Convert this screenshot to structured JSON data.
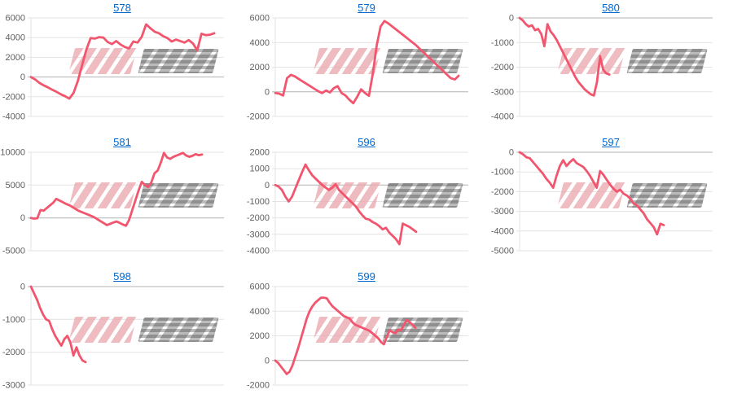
{
  "page": {
    "background": "#ffffff"
  },
  "styles": {
    "link_color": "#0066cc",
    "line_color": "#f2566e",
    "grid_color": "#e3e3e3",
    "zero_line_color": "#b3b3b3",
    "tick_label_color": "#5f5f5f"
  },
  "watermark": {
    "text": "みんレポ",
    "pink_text": "みん",
    "gray_text": "レポ",
    "pink_color": "#eaa9b0",
    "gray_color": "#a9a9a9"
  },
  "chart_data": [
    {
      "type": "line",
      "title": "578",
      "xlabel": "",
      "ylabel": "",
      "legend": "none",
      "grid": "horizontal",
      "ylim": [
        -4000,
        6000
      ],
      "yticks": [
        6000,
        4000,
        2000,
        0,
        -2000,
        -4000
      ],
      "x_span": 0.95,
      "values": [
        0,
        -250,
        -600,
        -850,
        -1050,
        -1300,
        -1500,
        -1750,
        -1950,
        -2200,
        -1600,
        -400,
        1200,
        2800,
        3950,
        3900,
        4050,
        4000,
        3550,
        3350,
        3650,
        3300,
        3050,
        2900,
        3600,
        3500,
        4100,
        5350,
        4950,
        4600,
        4450,
        4150,
        3950,
        3600,
        3800,
        3650,
        3500,
        3750,
        3400,
        2700,
        4400,
        4250,
        4300,
        4450
      ]
    },
    {
      "type": "line",
      "title": "579",
      "xlabel": "",
      "ylabel": "",
      "legend": "none",
      "grid": "horizontal",
      "ylim": [
        -2000,
        6000
      ],
      "yticks": [
        6000,
        4000,
        2000,
        0,
        -2000
      ],
      "x_span": 0.95,
      "values": [
        -100,
        -150,
        -300,
        1100,
        1380,
        1250,
        1050,
        850,
        650,
        450,
        250,
        50,
        -100,
        100,
        -50,
        300,
        460,
        -100,
        -300,
        -650,
        -930,
        -400,
        200,
        -100,
        -330,
        1500,
        3800,
        5300,
        5750,
        5550,
        5300,
        5050,
        4800,
        4550,
        4300,
        4050,
        3800,
        3500,
        3200,
        2900,
        2600,
        2300,
        2000,
        1700,
        1400,
        1100,
        1000,
        1300
      ]
    },
    {
      "type": "line",
      "title": "580",
      "xlabel": "",
      "ylabel": "",
      "legend": "none",
      "grid": "horizontal",
      "ylim": [
        -4000,
        0
      ],
      "yticks": [
        0,
        -1000,
        -2000,
        -3000,
        -4000
      ],
      "x_span": 0.465,
      "values": [
        0,
        -100,
        -250,
        -350,
        -300,
        -500,
        -450,
        -650,
        -1150,
        -250,
        -550,
        -700,
        -900,
        -1150,
        -1400,
        -1650,
        -1900,
        -2150,
        -2400,
        -2600,
        -2750,
        -2900,
        -3000,
        -3100,
        -3150,
        -2600,
        -1550,
        -2100,
        -2250,
        -2300
      ]
    },
    {
      "type": "line",
      "title": "581",
      "xlabel": "",
      "ylabel": "",
      "legend": "none",
      "grid": "horizontal",
      "ylim": [
        -5000,
        10000
      ],
      "yticks": [
        10000,
        5000,
        0,
        -5000
      ],
      "x_span": 0.886,
      "values": [
        0,
        -100,
        -50,
        1200,
        1100,
        1500,
        1900,
        2300,
        2900,
        2650,
        2400,
        2150,
        1950,
        1700,
        1400,
        1100,
        900,
        700,
        500,
        300,
        100,
        -200,
        -500,
        -800,
        -1100,
        -900,
        -700,
        -550,
        -750,
        -1000,
        -1200,
        -300,
        1200,
        2700,
        4200,
        5500,
        5000,
        4700,
        5400,
        6800,
        7200,
        8400,
        9900,
        9200,
        9000,
        9300,
        9500,
        9700,
        9900,
        9500,
        9300,
        9450,
        9700,
        9550,
        9650
      ]
    },
    {
      "type": "line",
      "title": "596",
      "xlabel": "",
      "ylabel": "",
      "legend": "none",
      "grid": "horizontal",
      "ylim": [
        -4000,
        2000
      ],
      "yticks": [
        2000,
        1000,
        0,
        -1000,
        -2000,
        -3000,
        -4000
      ],
      "x_span": 0.73,
      "values": [
        0,
        -100,
        -300,
        -700,
        -1000,
        -700,
        -200,
        300,
        800,
        1250,
        900,
        600,
        400,
        200,
        0,
        -150,
        -300,
        -150,
        50,
        -300,
        -500,
        -700,
        -900,
        -1100,
        -1300,
        -1600,
        -1850,
        -2050,
        -2100,
        -2250,
        -2350,
        -2500,
        -2700,
        -2600,
        -2900,
        -3100,
        -3300,
        -3600,
        -2350,
        -2450,
        -2550,
        -2700,
        -2850
      ]
    },
    {
      "type": "line",
      "title": "597",
      "xlabel": "",
      "ylabel": "",
      "legend": "none",
      "grid": "horizontal",
      "ylim": [
        -5000,
        0
      ],
      "yticks": [
        0,
        -1000,
        -2000,
        -3000,
        -4000,
        -5000
      ],
      "x_span": 0.747,
      "values": [
        0,
        -100,
        -250,
        -300,
        -500,
        -700,
        -900,
        -1100,
        -1350,
        -1550,
        -1800,
        -1200,
        -700,
        -400,
        -700,
        -500,
        -350,
        -550,
        -650,
        -750,
        -950,
        -1200,
        -1500,
        -1800,
        -950,
        -1150,
        -1400,
        -1650,
        -1850,
        -2000,
        -1900,
        -2100,
        -2200,
        -2350,
        -2600,
        -2700,
        -2900,
        -3100,
        -3400,
        -3600,
        -3800,
        -4170,
        -3630,
        -3700
      ]
    },
    {
      "type": "line",
      "title": "598",
      "xlabel": "",
      "ylabel": "",
      "legend": "none",
      "grid": "horizontal",
      "ylim": [
        -3000,
        0
      ],
      "yticks": [
        0,
        -1000,
        -2000,
        -3000
      ],
      "x_span": 0.283,
      "values": [
        0,
        -200,
        -400,
        -650,
        -850,
        -1000,
        -1050,
        -1300,
        -1500,
        -1650,
        -1800,
        -1600,
        -1500,
        -1700,
        -2100,
        -1850,
        -2100,
        -2250,
        -2300
      ]
    },
    {
      "type": "line",
      "title": "599",
      "xlabel": "",
      "ylabel": "",
      "legend": "none",
      "grid": "horizontal",
      "ylim": [
        -2000,
        6000
      ],
      "yticks": [
        6000,
        4000,
        2000,
        0,
        -2000
      ],
      "x_span": 0.726,
      "values": [
        0,
        -200,
        -500,
        -800,
        -1100,
        -900,
        -400,
        300,
        1000,
        1800,
        2600,
        3400,
        4000,
        4400,
        4700,
        4900,
        5100,
        5100,
        5050,
        4700,
        4400,
        4200,
        4000,
        3800,
        3600,
        3500,
        3400,
        3100,
        2900,
        2800,
        2700,
        2600,
        2500,
        2400,
        2200,
        2000,
        1800,
        1500,
        1310,
        1900,
        2450,
        2300,
        2200,
        2500,
        2450,
        2900,
        3300,
        3100,
        2900,
        2650
      ]
    }
  ]
}
